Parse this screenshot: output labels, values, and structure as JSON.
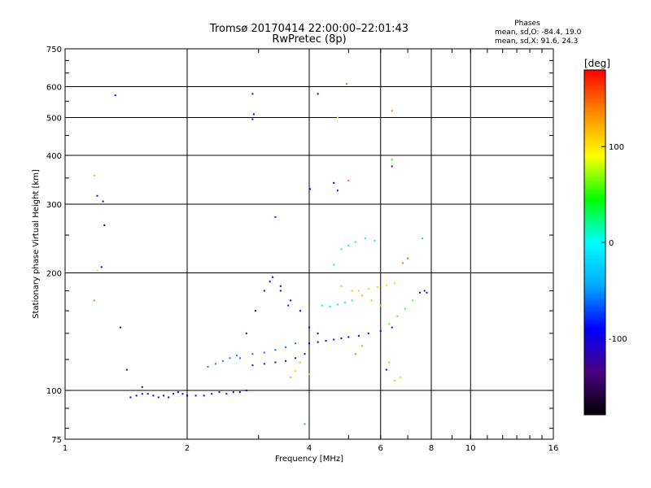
{
  "chart_data": {
    "type": "scatter",
    "title": "Tromsø 20170414 22:00:00–22:01:43",
    "subtitle": "RwPretec (8p)",
    "xlabel": "Frequency [MHz]",
    "ylabel": "Stationary phase Virtual Height [km]",
    "x_scale": "log",
    "y_scale": "log",
    "xlim": [
      1,
      16
    ],
    "ylim": [
      75,
      750
    ],
    "x_ticks": [
      1,
      2,
      4,
      6,
      8,
      10,
      16
    ],
    "y_ticks": [
      75,
      100,
      200,
      300,
      400,
      500,
      600,
      750
    ],
    "grid": true,
    "legend": {
      "title": "Phases",
      "lines": [
        "mean, sd,O: -84.4, 19.0",
        "mean, sd,X:  91.6, 24.3"
      ],
      "placement": "top-right"
    },
    "colorbar": {
      "label": "[deg]",
      "min": -180,
      "max": 180,
      "ticks": [
        100,
        0,
        -100
      ],
      "colors": [
        "#000000",
        "#4b0082",
        "#0000ff",
        "#00aaff",
        "#00ffff",
        "#00ff00",
        "#ffff00",
        "#ff8c00",
        "#ff0000"
      ]
    },
    "traces": [
      {
        "x": [
          1.45,
          1.5,
          1.55,
          1.6,
          1.65,
          1.7,
          1.75,
          1.8,
          1.85,
          1.9,
          1.95,
          2.0
        ],
        "y": [
          96,
          97,
          98,
          98,
          97,
          96,
          97,
          96,
          98,
          99,
          98,
          97
        ],
        "phase": -95
      },
      {
        "x": [
          2.0,
          2.1,
          2.2,
          2.3,
          2.4,
          2.5,
          2.6,
          2.7,
          2.8
        ],
        "y": [
          97,
          97,
          97,
          98,
          99,
          98,
          99,
          99,
          100
        ],
        "phase": -90
      },
      {
        "x": [
          2.25,
          2.35,
          2.45,
          2.55,
          2.65
        ],
        "y": [
          115,
          117,
          119,
          121,
          123
        ],
        "phase": -55
      },
      {
        "x": [
          2.7,
          2.9,
          3.1,
          3.3,
          3.5,
          3.7
        ],
        "y": [
          121,
          124,
          125,
          127,
          129,
          132
        ],
        "phase": -60
      },
      {
        "x": [
          2.9,
          3.1,
          3.3,
          3.5,
          3.7,
          3.9
        ],
        "y": [
          116,
          117,
          118,
          119,
          121,
          124
        ],
        "phase": -105
      },
      {
        "x": [
          2.8,
          2.95,
          3.1,
          3.25,
          3.4,
          3.55
        ],
        "y": [
          140,
          160,
          180,
          195,
          185,
          165
        ],
        "phase": -110
      },
      {
        "x": [
          3.2,
          3.4,
          3.6,
          3.8,
          4.0,
          4.2
        ],
        "y": [
          190,
          180,
          170,
          160,
          145,
          140
        ],
        "phase": -95
      },
      {
        "x": [
          4.0,
          4.2,
          4.4,
          4.6,
          4.8,
          5.0,
          5.3,
          5.6,
          6.0,
          6.4
        ],
        "y": [
          132,
          133,
          134,
          135,
          136,
          137,
          138,
          140,
          142,
          145
        ],
        "phase": -100
      },
      {
        "x": [
          4.6,
          4.8,
          5.0,
          5.2,
          5.5,
          5.8
        ],
        "y": [
          210,
          230,
          235,
          240,
          245,
          242
        ],
        "phase": 15
      },
      {
        "x": [
          4.3,
          4.5,
          4.7,
          4.9,
          5.1
        ],
        "y": [
          165,
          164,
          166,
          168,
          170
        ],
        "phase": 20
      },
      {
        "x": [
          4.8,
          5.1,
          5.4,
          5.7,
          6.0
        ],
        "y": [
          185,
          180,
          175,
          170,
          165
        ],
        "phase": 120
      },
      {
        "x": [
          6.3,
          6.6,
          6.9,
          7.2
        ],
        "y": [
          148,
          155,
          162,
          170
        ],
        "phase": 60
      },
      {
        "x": [
          5.3,
          5.6,
          5.9,
          6.2,
          6.5
        ],
        "y": [
          180,
          182,
          184,
          186,
          188
        ],
        "phase": 105
      },
      {
        "x": [
          7.5,
          7.7,
          7.8
        ],
        "y": [
          178,
          180,
          178
        ],
        "phase": -110
      }
    ],
    "isolated_points": [
      {
        "x": 1.33,
        "y": 570,
        "phase": -110
      },
      {
        "x": 2.9,
        "y": 575,
        "phase": -95
      },
      {
        "x": 2.92,
        "y": 510,
        "phase": -95
      },
      {
        "x": 2.9,
        "y": 495,
        "phase": -95
      },
      {
        "x": 4.2,
        "y": 575,
        "phase": -100
      },
      {
        "x": 4.95,
        "y": 610,
        "phase": 150
      },
      {
        "x": 6.4,
        "y": 520,
        "phase": 140
      },
      {
        "x": 4.7,
        "y": 500,
        "phase": 100
      },
      {
        "x": 6.4,
        "y": 390,
        "phase": 50
      },
      {
        "x": 6.4,
        "y": 375,
        "phase": -110
      },
      {
        "x": 4.02,
        "y": 328,
        "phase": -110
      },
      {
        "x": 1.18,
        "y": 355,
        "phase": 120
      },
      {
        "x": 1.2,
        "y": 315,
        "phase": -110
      },
      {
        "x": 1.24,
        "y": 305,
        "phase": -150
      },
      {
        "x": 1.25,
        "y": 265,
        "phase": -165
      },
      {
        "x": 1.23,
        "y": 207,
        "phase": -100
      },
      {
        "x": 1.2,
        "y": 203,
        "phase": 80
      },
      {
        "x": 1.18,
        "y": 170,
        "phase": 140
      },
      {
        "x": 1.37,
        "y": 145,
        "phase": -140
      },
      {
        "x": 1.42,
        "y": 113,
        "phase": -150
      },
      {
        "x": 1.55,
        "y": 102,
        "phase": -130
      },
      {
        "x": 3.3,
        "y": 278,
        "phase": -85
      },
      {
        "x": 4.6,
        "y": 340,
        "phase": -90
      },
      {
        "x": 4.7,
        "y": 325,
        "phase": -85
      },
      {
        "x": 5.0,
        "y": 345,
        "phase": 150
      },
      {
        "x": 7.6,
        "y": 245,
        "phase": -30
      },
      {
        "x": 7.0,
        "y": 218,
        "phase": 150
      },
      {
        "x": 6.8,
        "y": 212,
        "phase": 150
      },
      {
        "x": 6.7,
        "y": 108,
        "phase": 80
      },
      {
        "x": 6.5,
        "y": 106,
        "phase": 70
      },
      {
        "x": 3.9,
        "y": 82,
        "phase": -40
      },
      {
        "x": 3.6,
        "y": 108,
        "phase": 120
      },
      {
        "x": 3.7,
        "y": 112,
        "phase": 110
      },
      {
        "x": 3.8,
        "y": 118,
        "phase": 120
      },
      {
        "x": 4.0,
        "y": 110,
        "phase": 110
      },
      {
        "x": 5.2,
        "y": 124,
        "phase": 140
      },
      {
        "x": 5.4,
        "y": 130,
        "phase": 130
      },
      {
        "x": 6.3,
        "y": 118,
        "phase": 60
      },
      {
        "x": 6.2,
        "y": 113,
        "phase": -90
      }
    ]
  }
}
